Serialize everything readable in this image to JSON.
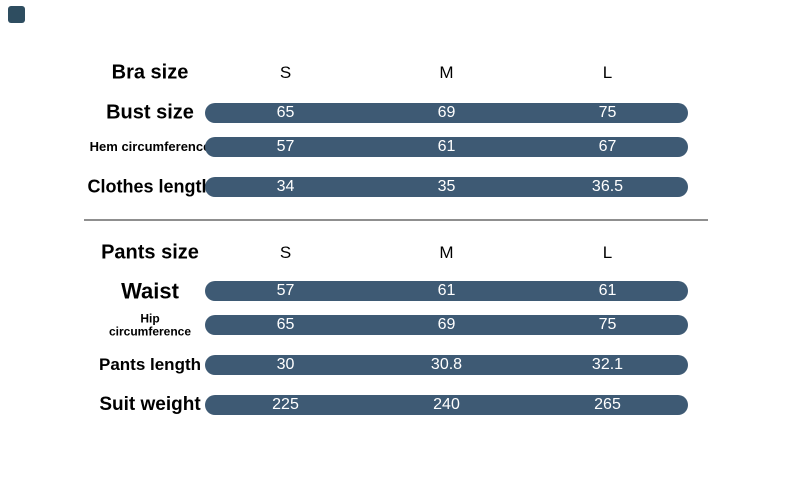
{
  "colors": {
    "bar": "#3e5a74",
    "bar_value_text": "#ffffff",
    "label_text": "#000000",
    "divider": "#8f8f8f",
    "corner_mark": "#2e4d60"
  },
  "chart_data": {
    "type": "table",
    "columns": [
      "S",
      "M",
      "L"
    ],
    "sections": [
      {
        "header_label": "Bra size",
        "rows": [
          {
            "label": "Bust size",
            "values": [
              "65",
              "69",
              "75"
            ]
          },
          {
            "label": "Hem circumference",
            "values": [
              "57",
              "61",
              "67"
            ]
          },
          {
            "label": "Clothes length",
            "values": [
              "34",
              "35",
              "36.5"
            ]
          }
        ]
      },
      {
        "header_label": "Pants size",
        "rows": [
          {
            "label": "Waist",
            "values": [
              "57",
              "61",
              "61"
            ]
          },
          {
            "label": "Hip circumference",
            "label_lines": [
              "Hip",
              "circumference"
            ],
            "values": [
              "65",
              "69",
              "75"
            ]
          },
          {
            "label": "Pants length",
            "values": [
              "30",
              "30.8",
              "32.1"
            ]
          },
          {
            "label": "Suit weight",
            "values": [
              "225",
              "240",
              "265"
            ]
          }
        ]
      }
    ]
  }
}
